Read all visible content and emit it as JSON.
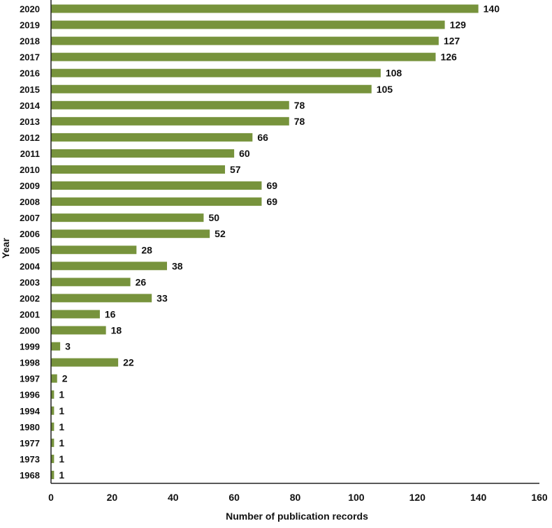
{
  "chart_data": {
    "type": "bar",
    "orientation": "horizontal",
    "title": "",
    "xlabel": "Number of publication records",
    "ylabel": "Year",
    "xlim": [
      0,
      160
    ],
    "x_ticks": [
      0,
      20,
      40,
      60,
      80,
      100,
      120,
      140,
      160
    ],
    "grid": false,
    "legend": "none",
    "bar_color": "#77933c",
    "categories": [
      "2020",
      "2019",
      "2018",
      "2017",
      "2016",
      "2015",
      "2014",
      "2013",
      "2012",
      "2011",
      "2010",
      "2009",
      "2008",
      "2007",
      "2006",
      "2005",
      "2004",
      "2003",
      "2002",
      "2001",
      "2000",
      "1999",
      "1998",
      "1997",
      "1996",
      "1994",
      "1980",
      "1977",
      "1973",
      "1968"
    ],
    "values": [
      140,
      129,
      127,
      126,
      108,
      105,
      78,
      78,
      66,
      60,
      57,
      69,
      69,
      50,
      52,
      28,
      38,
      26,
      33,
      16,
      18,
      3,
      22,
      2,
      1,
      1,
      1,
      1,
      1,
      1
    ],
    "data_labels": [
      "140",
      "129",
      "127",
      "126",
      "108",
      "105",
      "78",
      "78",
      "66",
      "60",
      "57",
      "69",
      "69",
      "50",
      "52",
      "28",
      "38",
      "26",
      "33",
      "16",
      "18",
      "3",
      "22",
      "2",
      "1",
      "1",
      "1",
      "1",
      "1",
      "1"
    ]
  }
}
